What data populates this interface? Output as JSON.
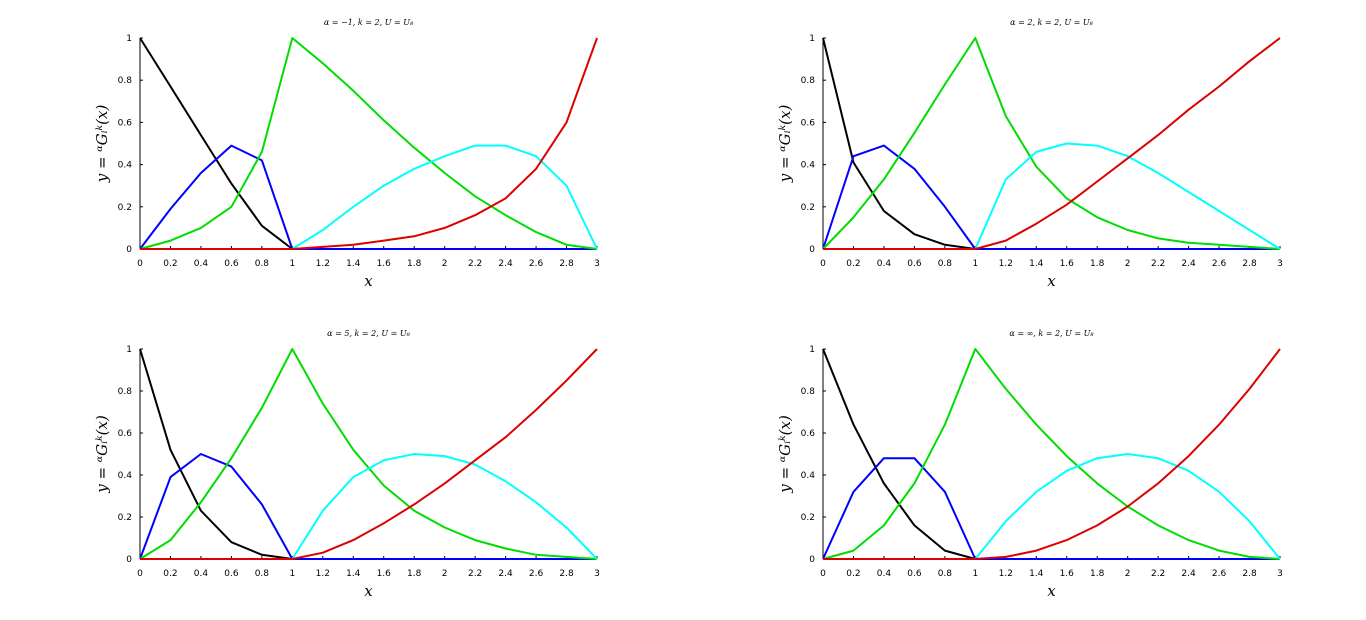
{
  "chart_data": [
    {
      "type": "line",
      "title": "α = −1, k = 2, U = U₈",
      "xlabel": "x",
      "ylabel": "y = ᵅGᵢᵏ(x)",
      "xlim": [
        0,
        3
      ],
      "ylim": [
        0,
        1
      ],
      "xticks": [
        "0",
        "0.2",
        "0.4",
        "0.6",
        "0.8",
        "1",
        "1.2",
        "1.4",
        "1.6",
        "1.8",
        "2",
        "2.2",
        "2.4",
        "2.6",
        "2.8",
        "3"
      ],
      "yticks": [
        "0",
        "0.2",
        "0.4",
        "0.6",
        "0.8",
        "1"
      ],
      "x": [
        0,
        0.2,
        0.4,
        0.6,
        0.8,
        1,
        1.2,
        1.4,
        1.6,
        1.8,
        2,
        2.2,
        2.4,
        2.6,
        2.8,
        3
      ],
      "series": [
        {
          "color": "#000000",
          "values": [
            1,
            0.77,
            0.54,
            0.31,
            0.11,
            0,
            0,
            0,
            0,
            0,
            0,
            0,
            0,
            0,
            0,
            0
          ]
        },
        {
          "color": "#0000ff",
          "values": [
            0,
            0.19,
            0.36,
            0.49,
            0.42,
            0,
            0,
            0,
            0,
            0,
            0,
            0,
            0,
            0,
            0,
            0
          ]
        },
        {
          "color": "#00dd00",
          "values": [
            0,
            0.04,
            0.1,
            0.2,
            0.46,
            1,
            0.88,
            0.75,
            0.61,
            0.48,
            0.36,
            0.25,
            0.16,
            0.08,
            0.02,
            0
          ]
        },
        {
          "color": "#00ffff",
          "values": [
            0,
            0,
            0,
            0,
            0,
            0,
            0.09,
            0.2,
            0.3,
            0.38,
            0.44,
            0.49,
            0.49,
            0.44,
            0.3,
            0
          ]
        },
        {
          "color": "#dd0000",
          "values": [
            0,
            0,
            0,
            0,
            0,
            0,
            0.01,
            0.02,
            0.04,
            0.06,
            0.1,
            0.16,
            0.24,
            0.38,
            0.6,
            1
          ]
        }
      ]
    },
    {
      "type": "line",
      "title": "α = 2, k = 2, U = U₈",
      "xlabel": "x",
      "ylabel": "y = ᵅGᵢᵏ(x)",
      "xlim": [
        0,
        3
      ],
      "ylim": [
        0,
        1
      ],
      "xticks": [
        "0",
        "0.2",
        "0.4",
        "0.6",
        "0.8",
        "1",
        "1.2",
        "1.4",
        "1.6",
        "1.8",
        "2",
        "2.2",
        "2.4",
        "2.6",
        "2.8",
        "3"
      ],
      "yticks": [
        "0",
        "0.2",
        "0.4",
        "0.6",
        "0.8",
        "1"
      ],
      "x": [
        0,
        0.2,
        0.4,
        0.6,
        0.8,
        1,
        1.2,
        1.4,
        1.6,
        1.8,
        2,
        2.2,
        2.4,
        2.6,
        2.8,
        3
      ],
      "series": [
        {
          "color": "#000000",
          "values": [
            1,
            0.41,
            0.18,
            0.07,
            0.02,
            0,
            0,
            0,
            0,
            0,
            0,
            0,
            0,
            0,
            0,
            0
          ]
        },
        {
          "color": "#0000ff",
          "values": [
            0,
            0.44,
            0.49,
            0.38,
            0.2,
            0,
            0,
            0,
            0,
            0,
            0,
            0,
            0,
            0,
            0,
            0
          ]
        },
        {
          "color": "#00dd00",
          "values": [
            0,
            0.15,
            0.33,
            0.55,
            0.78,
            1,
            0.63,
            0.39,
            0.24,
            0.15,
            0.09,
            0.05,
            0.03,
            0.02,
            0.01,
            0
          ]
        },
        {
          "color": "#00ffff",
          "values": [
            0,
            0,
            0,
            0,
            0,
            0,
            0.33,
            0.46,
            0.5,
            0.49,
            0.44,
            0.36,
            0.27,
            0.18,
            0.09,
            0
          ]
        },
        {
          "color": "#dd0000",
          "values": [
            0,
            0,
            0,
            0,
            0,
            0,
            0.04,
            0.12,
            0.21,
            0.32,
            0.43,
            0.54,
            0.66,
            0.77,
            0.89,
            1
          ]
        }
      ]
    },
    {
      "type": "line",
      "title": "α = 5, k = 2, U = U₈",
      "xlabel": "x",
      "ylabel": "y = ᵅGᵢᵏ(x)",
      "xlim": [
        0,
        3
      ],
      "ylim": [
        0,
        1
      ],
      "xticks": [
        "0",
        "0.2",
        "0.4",
        "0.6",
        "0.8",
        "1",
        "1.2",
        "1.4",
        "1.6",
        "1.8",
        "2",
        "2.2",
        "2.4",
        "2.6",
        "2.8",
        "3"
      ],
      "yticks": [
        "0",
        "0.2",
        "0.4",
        "0.6",
        "0.8",
        "1"
      ],
      "x": [
        0,
        0.2,
        0.4,
        0.6,
        0.8,
        1,
        1.2,
        1.4,
        1.6,
        1.8,
        2,
        2.2,
        2.4,
        2.6,
        2.8,
        3
      ],
      "series": [
        {
          "color": "#000000",
          "values": [
            1,
            0.52,
            0.23,
            0.08,
            0.02,
            0,
            0,
            0,
            0,
            0,
            0,
            0,
            0,
            0,
            0,
            0
          ]
        },
        {
          "color": "#0000ff",
          "values": [
            0,
            0.39,
            0.5,
            0.44,
            0.26,
            0,
            0,
            0,
            0,
            0,
            0,
            0,
            0,
            0,
            0,
            0
          ]
        },
        {
          "color": "#00dd00",
          "values": [
            0,
            0.09,
            0.27,
            0.48,
            0.72,
            1,
            0.74,
            0.52,
            0.35,
            0.23,
            0.15,
            0.09,
            0.05,
            0.02,
            0.01,
            0
          ]
        },
        {
          "color": "#00ffff",
          "values": [
            0,
            0,
            0,
            0,
            0,
            0,
            0.23,
            0.39,
            0.47,
            0.5,
            0.49,
            0.45,
            0.37,
            0.27,
            0.15,
            0
          ]
        },
        {
          "color": "#dd0000",
          "values": [
            0,
            0,
            0,
            0,
            0,
            0,
            0.03,
            0.09,
            0.17,
            0.26,
            0.36,
            0.47,
            0.58,
            0.71,
            0.85,
            1
          ]
        }
      ]
    },
    {
      "type": "line",
      "title": "α = ∞, k = 2, U = U₈",
      "xlabel": "x",
      "ylabel": "y = ᵅGᵢᵏ(x)",
      "xlim": [
        0,
        3
      ],
      "ylim": [
        0,
        1
      ],
      "xticks": [
        "0",
        "0.2",
        "0.4",
        "0.6",
        "0.8",
        "1",
        "1.2",
        "1.4",
        "1.6",
        "1.8",
        "2",
        "2.2",
        "2.4",
        "2.6",
        "2.8",
        "3"
      ],
      "yticks": [
        "0",
        "0.2",
        "0.4",
        "0.6",
        "0.8",
        "1"
      ],
      "x": [
        0,
        0.2,
        0.4,
        0.6,
        0.8,
        1,
        1.2,
        1.4,
        1.6,
        1.8,
        2,
        2.2,
        2.4,
        2.6,
        2.8,
        3
      ],
      "series": [
        {
          "color": "#000000",
          "values": [
            1,
            0.64,
            0.36,
            0.16,
            0.04,
            0,
            0,
            0,
            0,
            0,
            0,
            0,
            0,
            0,
            0,
            0
          ]
        },
        {
          "color": "#0000ff",
          "values": [
            0,
            0.32,
            0.48,
            0.48,
            0.32,
            0,
            0,
            0,
            0,
            0,
            0,
            0,
            0,
            0,
            0,
            0
          ]
        },
        {
          "color": "#00dd00",
          "values": [
            0,
            0.04,
            0.16,
            0.36,
            0.64,
            1,
            0.81,
            0.64,
            0.49,
            0.36,
            0.25,
            0.16,
            0.09,
            0.04,
            0.01,
            0
          ]
        },
        {
          "color": "#00ffff",
          "values": [
            0,
            0,
            0,
            0,
            0,
            0,
            0.18,
            0.32,
            0.42,
            0.48,
            0.5,
            0.48,
            0.42,
            0.32,
            0.18,
            0
          ]
        },
        {
          "color": "#dd0000",
          "values": [
            0,
            0,
            0,
            0,
            0,
            0,
            0.01,
            0.04,
            0.09,
            0.16,
            0.25,
            0.36,
            0.49,
            0.64,
            0.81,
            1
          ]
        }
      ]
    }
  ]
}
